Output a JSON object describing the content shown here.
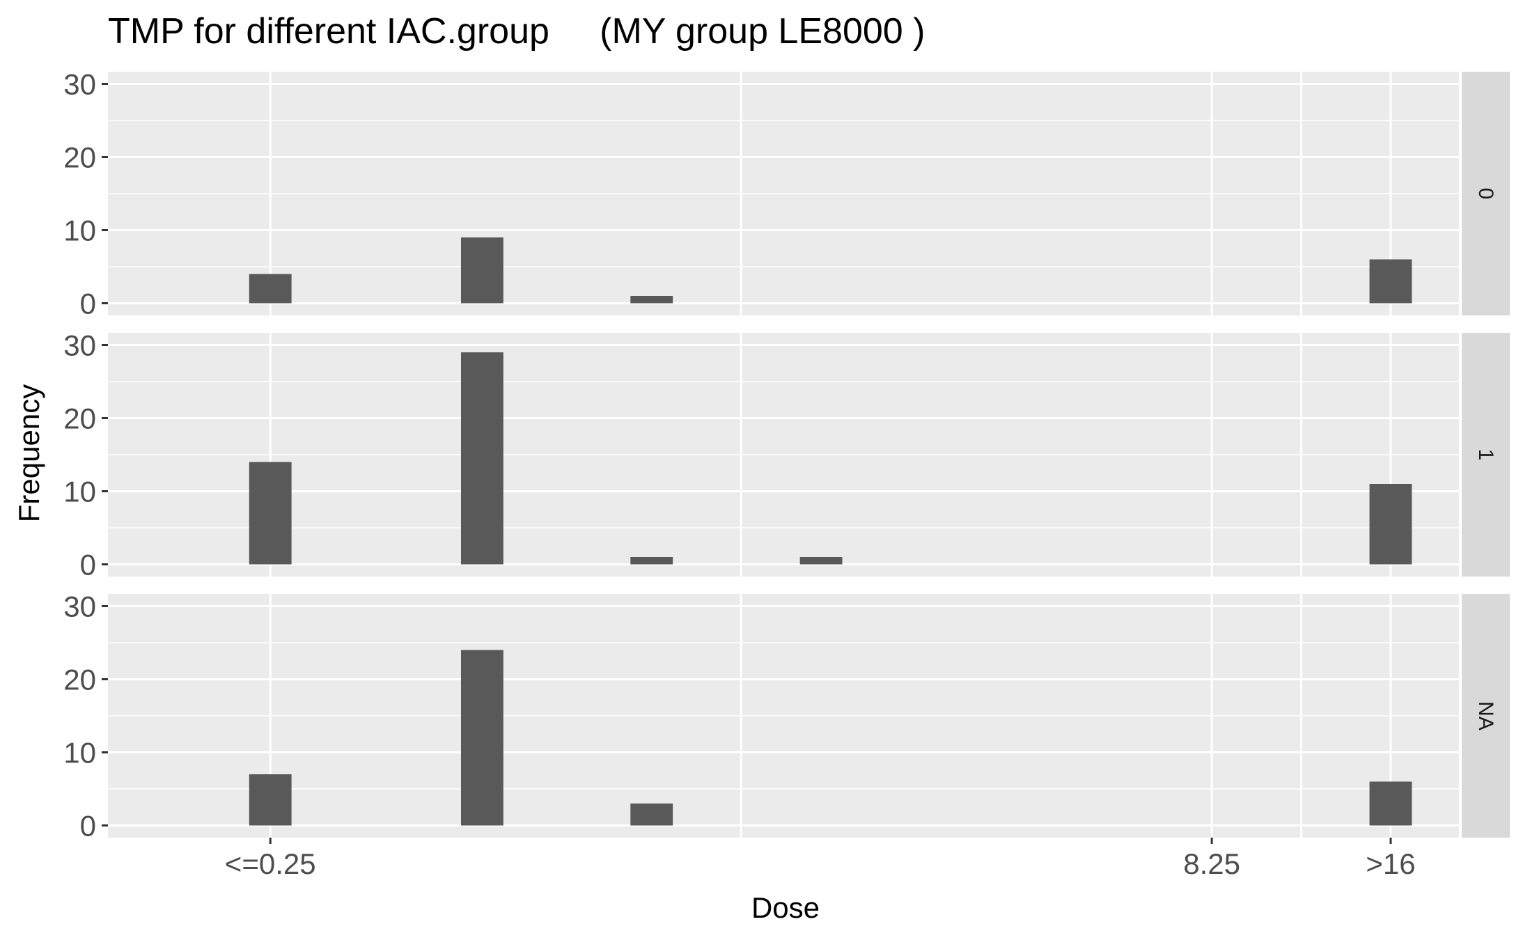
{
  "chart_data": {
    "type": "bar",
    "title": "TMP for different IAC.group     (MY group LE8000 )",
    "xlabel": "Dose",
    "ylabel": "Frequency",
    "ylim": [
      0,
      30
    ],
    "yticks": [
      0,
      10,
      20,
      30
    ],
    "xlim": [
      -0.69,
      5.05
    ],
    "xticks": [
      {
        "value": 0,
        "label": "<=0.25"
      },
      {
        "value": 4,
        "label": "8.25"
      },
      {
        "value": 4.76,
        "label": ">16"
      }
    ],
    "x_gridlines": [
      0,
      2,
      4,
      4.38,
      4.76
    ],
    "bar_width": 0.18,
    "panels": [
      {
        "label": "0",
        "bars": [
          {
            "x": 0,
            "value": 4
          },
          {
            "x": 0.9,
            "value": 9
          },
          {
            "x": 1.62,
            "value": 1
          },
          {
            "x": 4.76,
            "value": 6
          }
        ]
      },
      {
        "label": "1",
        "bars": [
          {
            "x": 0,
            "value": 14
          },
          {
            "x": 0.9,
            "value": 29
          },
          {
            "x": 1.62,
            "value": 1
          },
          {
            "x": 2.34,
            "value": 1
          },
          {
            "x": 4.76,
            "value": 11
          }
        ]
      },
      {
        "label": "NA",
        "bars": [
          {
            "x": 0,
            "value": 7
          },
          {
            "x": 0.9,
            "value": 24
          },
          {
            "x": 1.62,
            "value": 3
          },
          {
            "x": 4.76,
            "value": 6
          }
        ]
      }
    ],
    "colors": {
      "panel_bg": "#ebebeb",
      "grid": "#ffffff",
      "bar": "#595959",
      "strip_bg": "#d9d9d9",
      "tick": "#333333"
    }
  }
}
